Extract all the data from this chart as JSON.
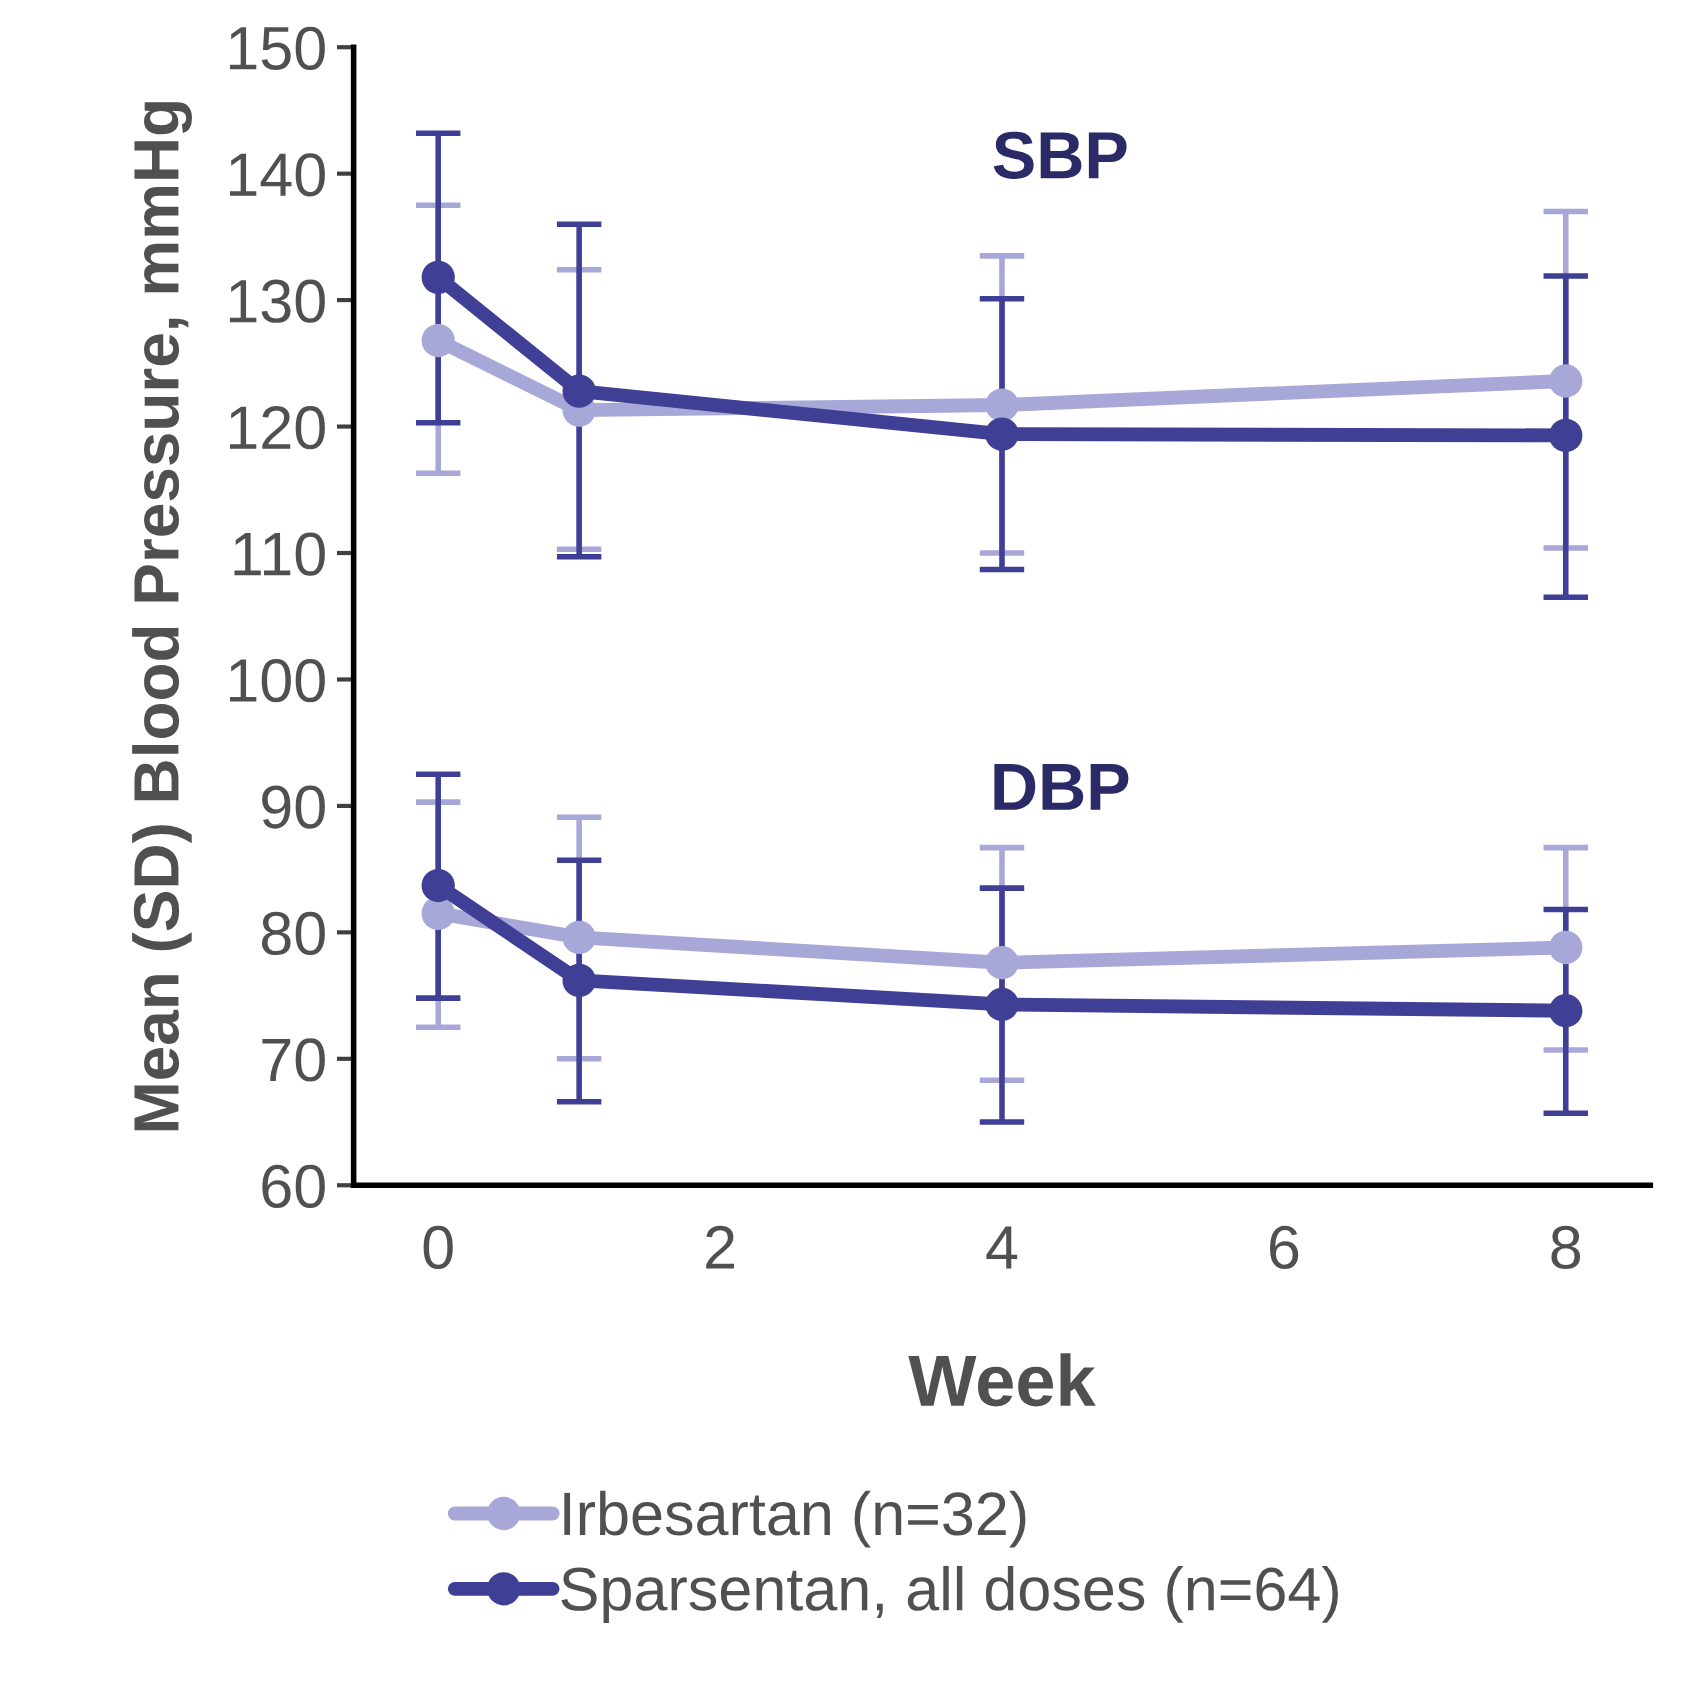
{
  "chart_data": {
    "type": "line",
    "xlabel": "Week",
    "ylabel": "Mean (SD) Blood Pressure, mmHg",
    "x": [
      0,
      1,
      4,
      8
    ],
    "series": [
      {
        "name": "Irbesartan (n=32)",
        "color": "#a8a8d8",
        "values": [
          126.8,
          121.3,
          121.7,
          123.6
        ],
        "errors": [
          [
            116.3,
            137.5
          ],
          [
            110.3,
            132.4
          ],
          [
            110.0,
            133.5
          ],
          [
            110.4,
            137.0
          ]
        ]
      },
      {
        "name": "Sparsentan, all doses (n=64)",
        "color": "#3f3f96",
        "values": [
          131.8,
          122.8,
          119.4,
          119.3
        ],
        "errors": [
          [
            120.3,
            143.2
          ],
          [
            109.7,
            136.0
          ],
          [
            108.7,
            130.1
          ],
          [
            106.5,
            131.9
          ]
        ]
      },
      {
        "color": "#a8a8d8",
        "values": [
          81.5,
          79.6,
          77.6,
          78.8
        ],
        "errors": [
          [
            72.5,
            90.3
          ],
          [
            70.0,
            89.1
          ],
          [
            68.3,
            86.7
          ],
          [
            70.7,
            86.7
          ]
        ]
      },
      {
        "color": "#3f3f96",
        "values": [
          83.7,
          76.2,
          74.3,
          73.8
        ],
        "errors": [
          [
            74.8,
            92.5
          ],
          [
            66.6,
            85.7
          ],
          [
            65.0,
            83.5
          ],
          [
            65.7,
            81.8
          ]
        ]
      }
    ],
    "annotations": [
      "SBP",
      "DBP"
    ],
    "xlim": [
      -0.6,
      8.6
    ],
    "xticks": [
      0,
      2,
      4,
      6,
      8
    ],
    "ylim": [
      60,
      150
    ],
    "yticks": [
      60,
      70,
      80,
      90,
      100,
      110,
      120,
      130,
      140,
      150
    ],
    "grid": false,
    "legend": "bottom",
    "marker": "circle",
    "line_style": "solid"
  }
}
